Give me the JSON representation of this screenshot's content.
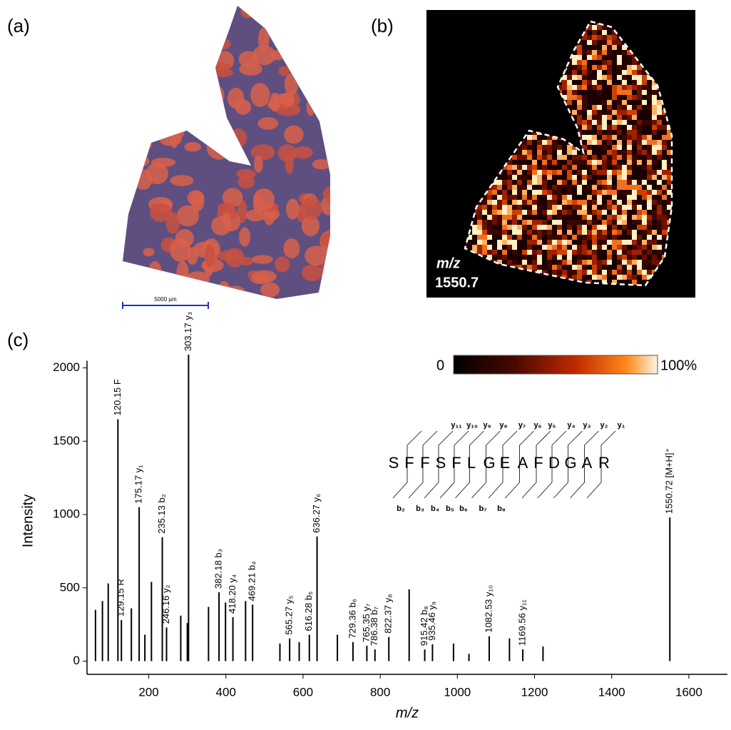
{
  "panels": {
    "a": "(a)",
    "b": "(b)",
    "c": "(c)"
  },
  "scale_bar": "5000 µm",
  "ion_image": {
    "mz_label": "m/z",
    "mz_value": "1550.7"
  },
  "colorbar": {
    "min_label": "0",
    "max_label": "100%"
  },
  "fragments": {
    "sequence": [
      "S",
      "F",
      "F",
      "S",
      "F",
      "L",
      "G",
      "E",
      "A",
      "F",
      "D",
      "G",
      "A",
      "R"
    ],
    "y_ions": [
      "y₁₁",
      "y₁₀",
      "y₉",
      "y₈",
      "y₇",
      "y₆",
      "y₅",
      "y₄",
      "y₃",
      "y₂",
      "y₁"
    ],
    "b_ions": [
      "b₂",
      "b₃",
      "b₄",
      "b₅",
      "b₆",
      "b₇",
      "b₈"
    ]
  },
  "chart_data": {
    "type": "stick",
    "x_label": "m/z",
    "y_label": "Intensity",
    "xlim": [
      40,
      1700
    ],
    "xticks": [
      200,
      400,
      600,
      800,
      1000,
      1200,
      1400,
      1600
    ],
    "ylim": [
      -90,
      2100
    ],
    "yticks": [
      0,
      500,
      1000,
      1500,
      2000
    ],
    "color": "#000000",
    "x": [
      62,
      80,
      95,
      120.15,
      129.15,
      155,
      175.17,
      190,
      207,
      235.13,
      246.16,
      283,
      300,
      303.17,
      355,
      382.18,
      399,
      418.2,
      451,
      469.21,
      540,
      565.27,
      590,
      616.28,
      636.27,
      689,
      729.36,
      765.35,
      786.38,
      822.37,
      875,
      915.42,
      935.46,
      990,
      1030,
      1082.53,
      1135,
      1169.56,
      1222,
      1550.72
    ],
    "values": [
      350,
      410,
      530,
      1650,
      280,
      360,
      1050,
      180,
      540,
      845,
      230,
      310,
      260,
      2090,
      370,
      470,
      400,
      300,
      410,
      385,
      120,
      155,
      130,
      180,
      850,
      180,
      130,
      105,
      80,
      165,
      490,
      80,
      115,
      120,
      50,
      170,
      155,
      80,
      100,
      980
    ],
    "peak_labels": [
      null,
      null,
      null,
      "120.15 F",
      "129.15 R",
      null,
      "175.17 y₁",
      null,
      null,
      "235.13 b₂",
      "246.16 y₂",
      null,
      null,
      "303.17 y₃",
      null,
      "382.18 b₃",
      null,
      "418.20 y₄",
      null,
      "469.21 b₄",
      null,
      "565.27 y₅",
      null,
      "616.28 b₅",
      "636.27 y₆",
      null,
      "729.36 b₆",
      "765.35 y₇",
      "786.38 b₇",
      "822.37 y₈",
      null,
      "915.42 b₈",
      "935.46 y₉",
      null,
      null,
      "1082.53 y₁₀",
      null,
      "1169.56 y₁₁",
      null,
      "1550.72 [M+H]⁺"
    ]
  }
}
